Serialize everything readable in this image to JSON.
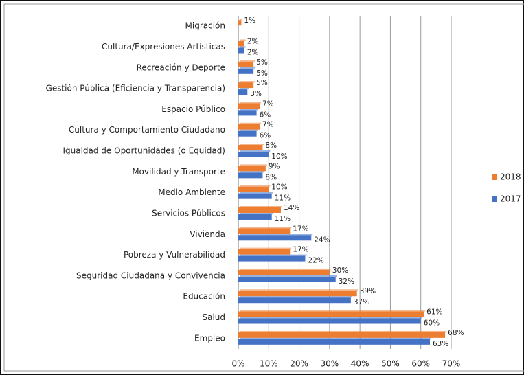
{
  "chart_data": {
    "type": "bar",
    "orientation": "horizontal",
    "categories": [
      "Migración",
      "Cultura/Expresiones Artísticas",
      "Recreación y Deporte",
      "Gestión Pública (Eficiencia y Transparencia)",
      "Espacio Público",
      "Cultura y Comportamiento Ciudadano",
      "Igualdad de Oportunidades (o Equidad)",
      "Movilidad y Transporte",
      "Medio Ambiente",
      "Servicios Públicos",
      "Vivienda",
      "Pobreza y Vulnerabilidad",
      "Seguridad Ciudadana y Convivencia",
      "Educación",
      "Salud",
      "Empleo"
    ],
    "series": [
      {
        "name": "2018",
        "color": "#ed7d31",
        "values": [
          1,
          2,
          5,
          5,
          7,
          7,
          8,
          9,
          10,
          14,
          17,
          17,
          30,
          39,
          61,
          68
        ],
        "value_labels": [
          "1%",
          "2%",
          "5%",
          "5%",
          "7%",
          "7%",
          "8%",
          "9%",
          "10%",
          "14%",
          "17%",
          "17%",
          "30%",
          "39%",
          "61%",
          "68%"
        ]
      },
      {
        "name": "2017",
        "color": "#4472c4",
        "values": [
          null,
          2,
          5,
          3,
          6,
          6,
          10,
          8,
          11,
          11,
          24,
          22,
          32,
          37,
          60,
          63
        ],
        "value_labels": [
          null,
          "2%",
          "5%",
          "3%",
          "6%",
          "6%",
          "10%",
          "8%",
          "11%",
          "11%",
          "24%",
          "22%",
          "32%",
          "37%",
          "60%",
          "63%"
        ]
      }
    ],
    "xlim": [
      0,
      70
    ],
    "xticks": [
      {
        "value": 0,
        "label": "0%"
      },
      {
        "value": 10,
        "label": "10%"
      },
      {
        "value": 20,
        "label": "20%"
      },
      {
        "value": 30,
        "label": "30%"
      },
      {
        "value": 40,
        "label": "40%"
      },
      {
        "value": 50,
        "label": "50%"
      },
      {
        "value": 60,
        "label": "60%"
      },
      {
        "value": 70,
        "label": "70%"
      }
    ],
    "grid": true,
    "legend": "right"
  }
}
